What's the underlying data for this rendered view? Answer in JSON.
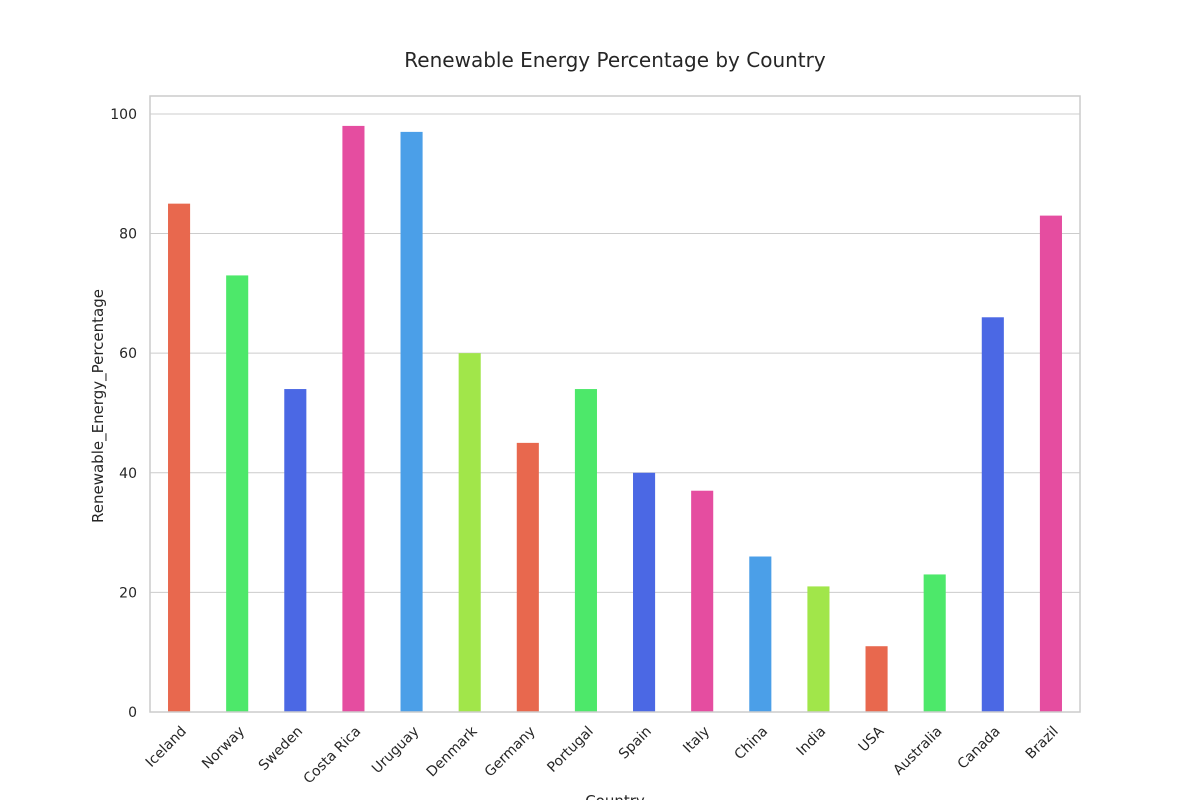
{
  "chart_data": {
    "type": "bar",
    "title": "Renewable Energy Percentage by Country",
    "xlabel": "Country",
    "ylabel": "Renewable_Energy_Percentage",
    "categories": [
      "Iceland",
      "Norway",
      "Sweden",
      "Costa Rica",
      "Uruguay",
      "Denmark",
      "Germany",
      "Portugal",
      "Spain",
      "Italy",
      "China",
      "India",
      "USA",
      "Australia",
      "Canada",
      "Brazil"
    ],
    "values": [
      85,
      73,
      54,
      98,
      97,
      60,
      45,
      54,
      40,
      37,
      26,
      21,
      11,
      23,
      66,
      83
    ],
    "colors": [
      "#e8684e",
      "#4de86a",
      "#4b68e4",
      "#e54da0",
      "#4b9fe8",
      "#a1e64a",
      "#e8684e",
      "#4de86a",
      "#4b68e4",
      "#e54da0",
      "#4b9fe8",
      "#a1e64a",
      "#e8684e",
      "#4de86a",
      "#4b68e4",
      "#e54da0"
    ],
    "yticks": [
      "0",
      "20",
      "40",
      "60",
      "80",
      "100"
    ],
    "ylim": [
      0,
      103
    ],
    "grid": "horizontal",
    "legend": "none"
  }
}
